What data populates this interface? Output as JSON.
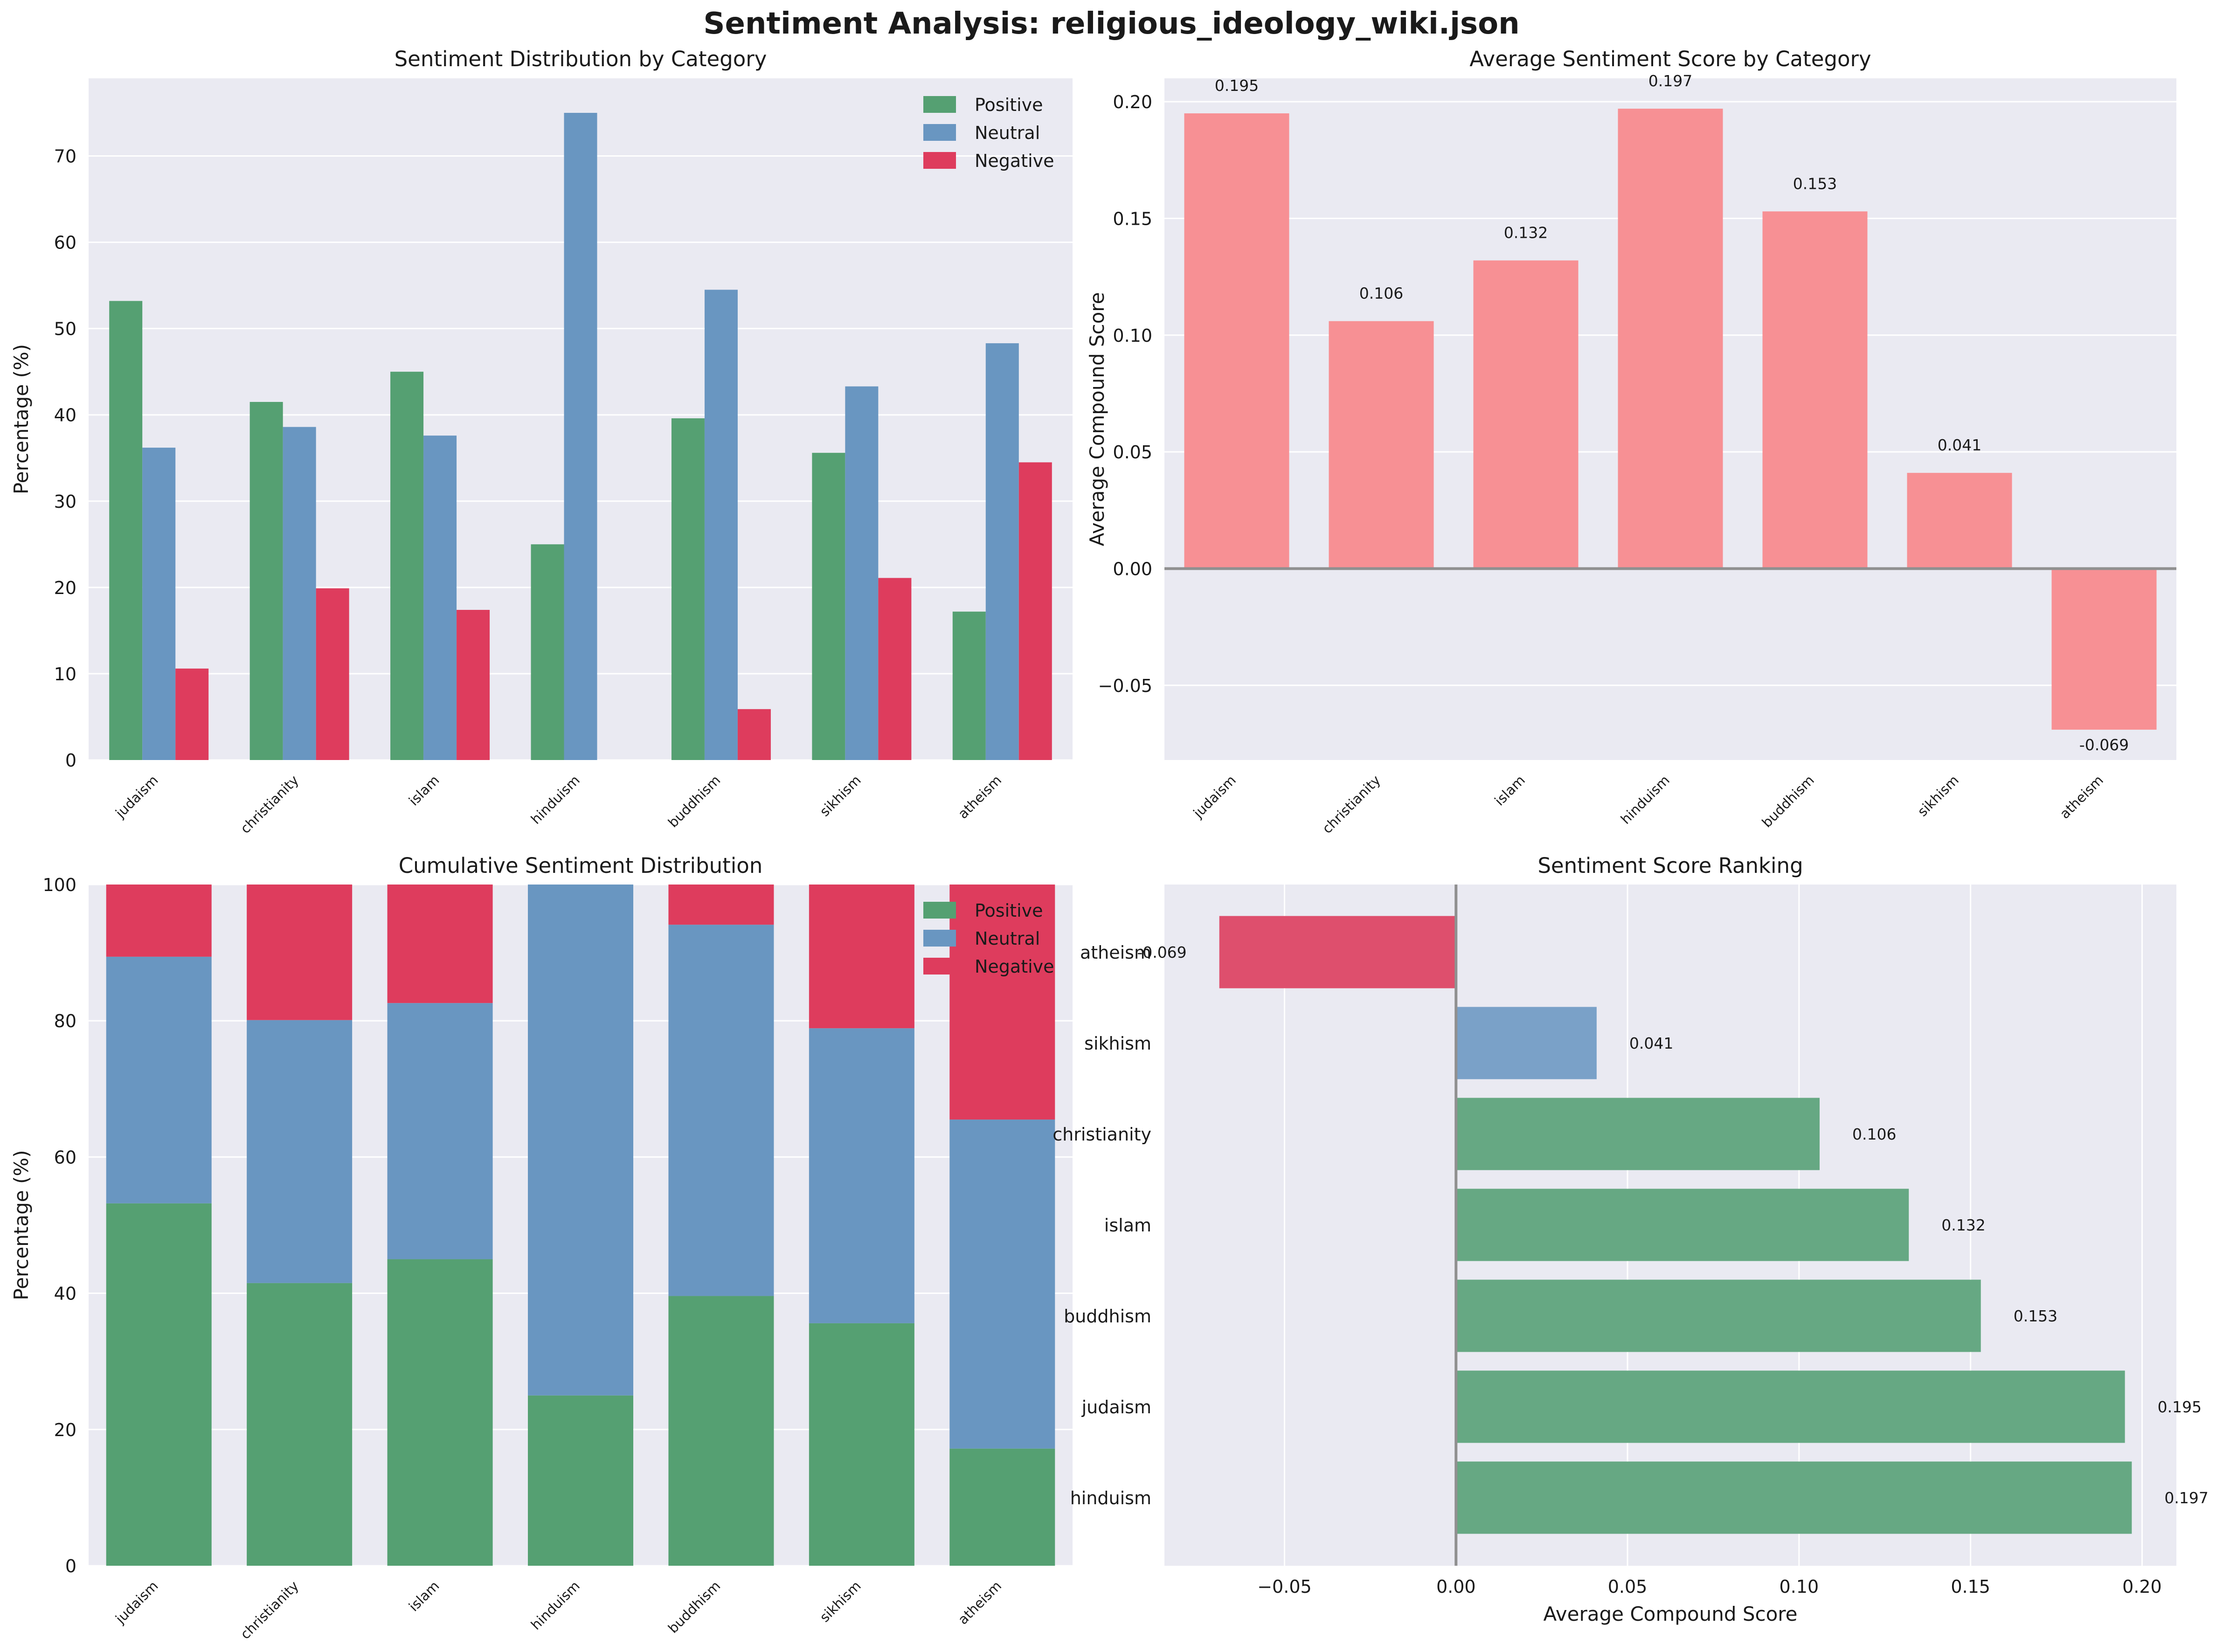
{
  "title": "Sentiment Analysis: religious_ideology_wiki.json",
  "colors": {
    "positive": "#55a072",
    "neutral": "#6996c1",
    "negative": "#de3c5d",
    "avg_bar": "#f79094",
    "rank_positive": "#66a883",
    "rank_neutral": "#7aa1c8",
    "rank_negative": "#de4f6d",
    "panel_bg": "#eaeaf2",
    "grid": "#ffffff",
    "zero_line": "#909090"
  },
  "chart_data": [
    {
      "type": "bar",
      "title": "Sentiment Distribution by Category",
      "xlabel": "",
      "ylabel": "Percentage (%)",
      "categories": [
        "judaism",
        "christianity",
        "islam",
        "hinduism",
        "buddhism",
        "sikhism",
        "atheism"
      ],
      "series": [
        {
          "name": "Positive",
          "values": [
            53.2,
            41.5,
            45.0,
            25.0,
            39.6,
            35.6,
            17.2
          ]
        },
        {
          "name": "Neutral",
          "values": [
            36.2,
            38.6,
            37.6,
            75.0,
            54.5,
            43.3,
            48.3
          ]
        },
        {
          "name": "Negative",
          "values": [
            10.6,
            19.9,
            17.4,
            0.0,
            5.9,
            21.1,
            34.5
          ]
        }
      ],
      "ylim": [
        0,
        79
      ],
      "yticks": [
        0,
        10,
        20,
        30,
        40,
        50,
        60,
        70
      ],
      "legend": "top-right",
      "grid": true
    },
    {
      "type": "bar",
      "title": "Average Sentiment Score by Category",
      "xlabel": "",
      "ylabel": "Average Compound Score",
      "categories": [
        "judaism",
        "christianity",
        "islam",
        "hinduism",
        "buddhism",
        "sikhism",
        "atheism"
      ],
      "values": [
        0.195,
        0.106,
        0.132,
        0.197,
        0.153,
        0.041,
        -0.069
      ],
      "data_labels": [
        "0.195",
        "0.106",
        "0.132",
        "0.197",
        "0.153",
        "0.041",
        "-0.069"
      ],
      "ylim": [
        -0.082,
        0.21
      ],
      "yticks": [
        -0.05,
        0.0,
        0.05,
        0.1,
        0.15,
        0.2
      ],
      "ytick_labels": [
        "−0.05",
        "0.00",
        "0.05",
        "0.10",
        "0.15",
        "0.20"
      ],
      "grid": true
    },
    {
      "type": "bar",
      "stacked": true,
      "title": "Cumulative Sentiment Distribution",
      "xlabel": "",
      "ylabel": "Percentage (%)",
      "categories": [
        "judaism",
        "christianity",
        "islam",
        "hinduism",
        "buddhism",
        "sikhism",
        "atheism"
      ],
      "series": [
        {
          "name": "Positive",
          "values": [
            53.2,
            41.5,
            45.0,
            25.0,
            39.6,
            35.6,
            17.2
          ]
        },
        {
          "name": "Neutral",
          "values": [
            36.2,
            38.6,
            37.6,
            75.0,
            54.5,
            43.3,
            48.3
          ]
        },
        {
          "name": "Negative",
          "values": [
            10.6,
            19.9,
            17.4,
            0.0,
            5.9,
            21.1,
            34.5
          ]
        }
      ],
      "ylim": [
        0,
        100
      ],
      "yticks": [
        0,
        20,
        40,
        60,
        80,
        100
      ],
      "legend": "top-right",
      "grid": true
    },
    {
      "type": "bar",
      "orientation": "horizontal",
      "title": "Sentiment Score Ranking",
      "xlabel": "Average Compound Score",
      "ylabel": "",
      "categories": [
        "hinduism",
        "judaism",
        "buddhism",
        "islam",
        "christianity",
        "sikhism",
        "atheism"
      ],
      "values": [
        0.197,
        0.195,
        0.153,
        0.132,
        0.106,
        0.041,
        -0.069
      ],
      "data_labels": [
        "0.197",
        "0.195",
        "0.153",
        "0.132",
        "0.106",
        "0.041",
        "-0.069"
      ],
      "bar_class": [
        "positive",
        "positive",
        "positive",
        "positive",
        "positive",
        "neutral",
        "negative"
      ],
      "xlim": [
        -0.085,
        0.21
      ],
      "xticks": [
        -0.05,
        0.0,
        0.05,
        0.1,
        0.15,
        0.2
      ],
      "xtick_labels": [
        "−0.05",
        "0.00",
        "0.05",
        "0.10",
        "0.15",
        "0.20"
      ],
      "grid": true
    }
  ]
}
